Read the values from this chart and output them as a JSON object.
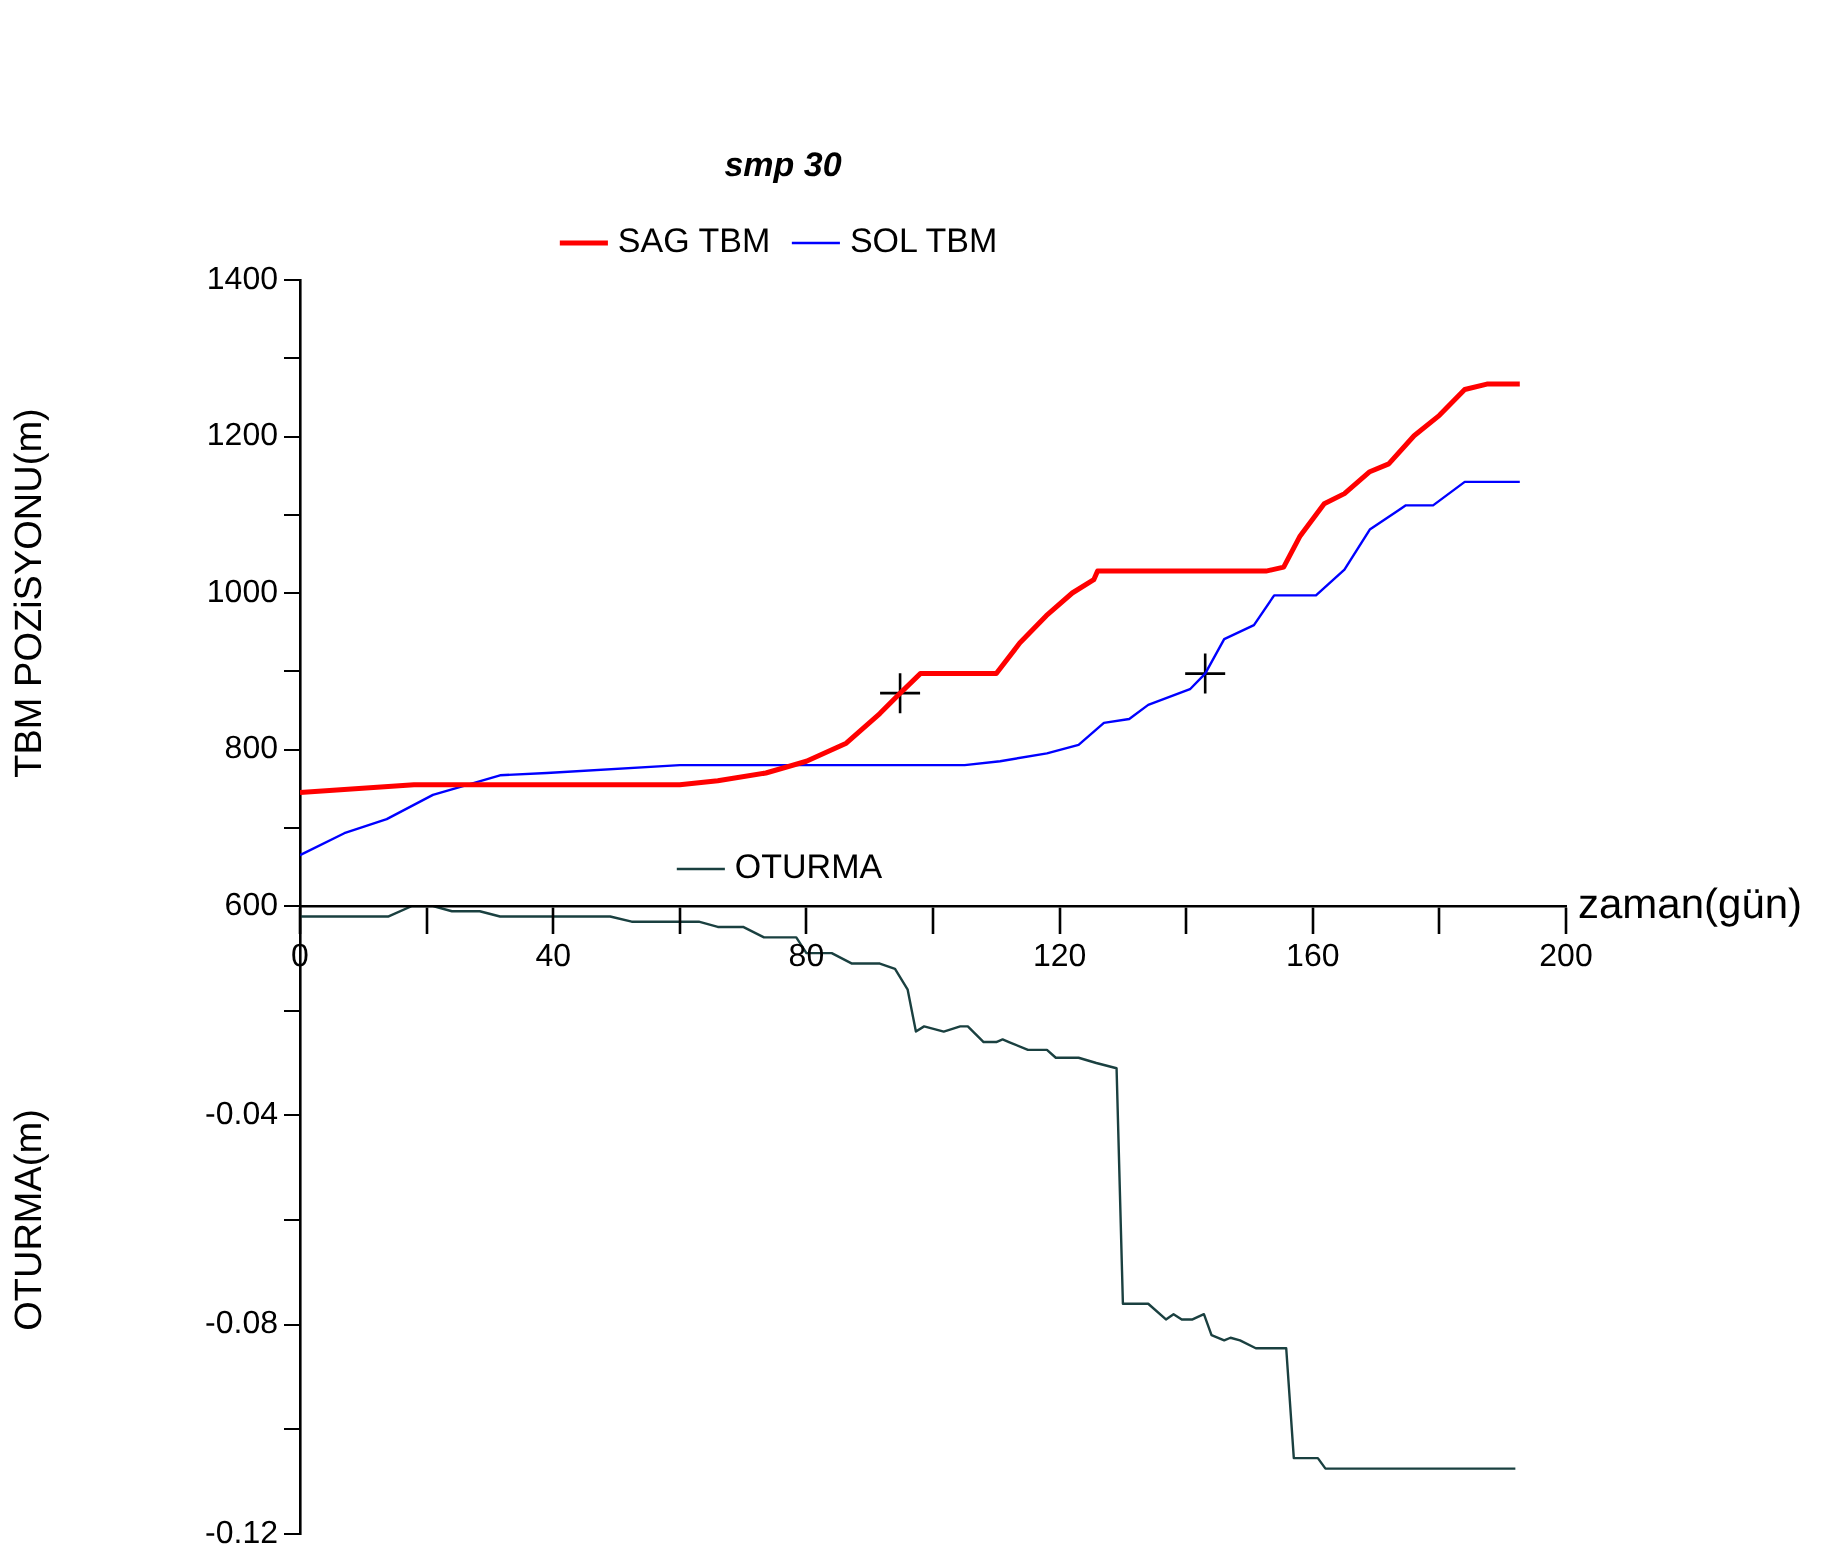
{
  "chart_data": [
    {
      "type": "line",
      "legend_title": "smp 30",
      "legend": "top",
      "xlabel": "zaman(gün)",
      "ylabel": "TBM POZiSYONU(m)",
      "xlim": [
        0,
        200
      ],
      "xticks": [
        0,
        {
          "value": 20,
          "label": null
        },
        40,
        {
          "value": 60,
          "label": null
        },
        80,
        {
          "value": 100,
          "label": null
        },
        120,
        {
          "value": 140,
          "label": null
        },
        160,
        {
          "value": 180,
          "label": null
        },
        200
      ],
      "ylim": [
        600,
        1400
      ],
      "yticks": [
        600,
        {
          "value": 700,
          "label": null
        },
        800,
        {
          "value": 900,
          "label": null
        },
        1000,
        {
          "value": 1100,
          "label": null
        },
        1200,
        {
          "value": 1300,
          "label": null
        },
        1400
      ],
      "series": [
        {
          "name": "SAG TBM",
          "color": "#ff0000",
          "x": [
            0,
            18,
            60,
            66,
            73.6,
            80,
            86.3,
            91.6,
            94.8,
            98,
            110,
            113.7,
            117.9,
            122,
            125.4,
            126,
            152.6,
            155.4,
            158,
            161.8,
            165,
            169,
            172,
            176,
            180,
            184,
            187.5,
            192.7
          ],
          "values": [
            745,
            755,
            755,
            760,
            770,
            785,
            808,
            846,
            872,
            897,
            897,
            936,
            971,
            1000,
            1017,
            1028,
            1028,
            1033,
            1073,
            1114,
            1127,
            1155,
            1165,
            1201,
            1227,
            1260,
            1267,
            1267
          ]
        },
        {
          "name": "SOL TBM",
          "color": "#0000ff",
          "x": [
            0,
            7,
            13.7,
            21,
            31.6,
            39,
            60,
            105,
            110.6,
            118,
            123,
            127,
            131,
            134,
            140.6,
            143,
            146,
            150.7,
            153.9,
            160.5,
            165,
            169,
            174.7,
            179,
            184,
            192.7
          ],
          "values": [
            665,
            693,
            711,
            742,
            767,
            770,
            780,
            780,
            785,
            795,
            806,
            834,
            839,
            857,
            877,
            897,
            941,
            959,
            997,
            997,
            1030,
            1081,
            1112,
            1112,
            1142,
            1142
          ]
        },
        {
          "type": "scatter",
          "marker": "cross",
          "color": "#000000",
          "x": [
            94.8,
            143
          ],
          "values": [
            872,
            897
          ]
        }
      ]
    },
    {
      "type": "line",
      "ylabel": "OTURMA(m)",
      "tick_labels": "y",
      "legend": "top",
      "xlim": [
        0,
        200
      ],
      "ylim": [
        -0.12,
        0
      ],
      "yticks": [
        {
          "value": 0,
          "label": null
        },
        {
          "value": -0.02,
          "label": null
        },
        -0.04,
        {
          "value": -0.06,
          "label": null
        },
        -0.08,
        {
          "value": -0.1,
          "label": null
        },
        -0.12
      ],
      "series": [
        {
          "name": "OTURMA",
          "color": "#1a4040",
          "x": [
            0,
            14,
            17.7,
            21,
            24,
            28.4,
            31.6,
            49,
            52.4,
            63,
            66,
            70,
            73.3,
            78.4,
            80,
            84,
            87.2,
            91.6,
            94,
            96,
            97.3,
            98.6,
            101.7,
            104.3,
            105.5,
            108,
            110,
            111,
            112,
            115,
            118,
            119.4,
            123,
            125.8,
            129,
            130,
            134,
            136.8,
            138,
            139.3,
            141,
            142.8,
            144,
            146,
            147,
            148.5,
            151,
            155.8,
            157,
            160.8,
            162,
            192
          ],
          "values": [
            -0.002,
            -0.002,
            0,
            0,
            -0.001,
            -0.001,
            -0.002,
            -0.002,
            -0.003,
            -0.003,
            -0.004,
            -0.004,
            -0.006,
            -0.006,
            -0.009,
            -0.009,
            -0.011,
            -0.011,
            -0.012,
            -0.016,
            -0.024,
            -0.023,
            -0.024,
            -0.023,
            -0.023,
            -0.026,
            -0.026,
            -0.0255,
            -0.026,
            -0.0275,
            -0.0275,
            -0.029,
            -0.029,
            -0.03,
            -0.031,
            -0.076,
            -0.076,
            -0.079,
            -0.078,
            -0.079,
            -0.079,
            -0.078,
            -0.082,
            -0.083,
            -0.0825,
            -0.083,
            -0.0845,
            -0.0845,
            -0.1055,
            -0.1055,
            -0.1075,
            -0.1075
          ]
        }
      ]
    }
  ]
}
